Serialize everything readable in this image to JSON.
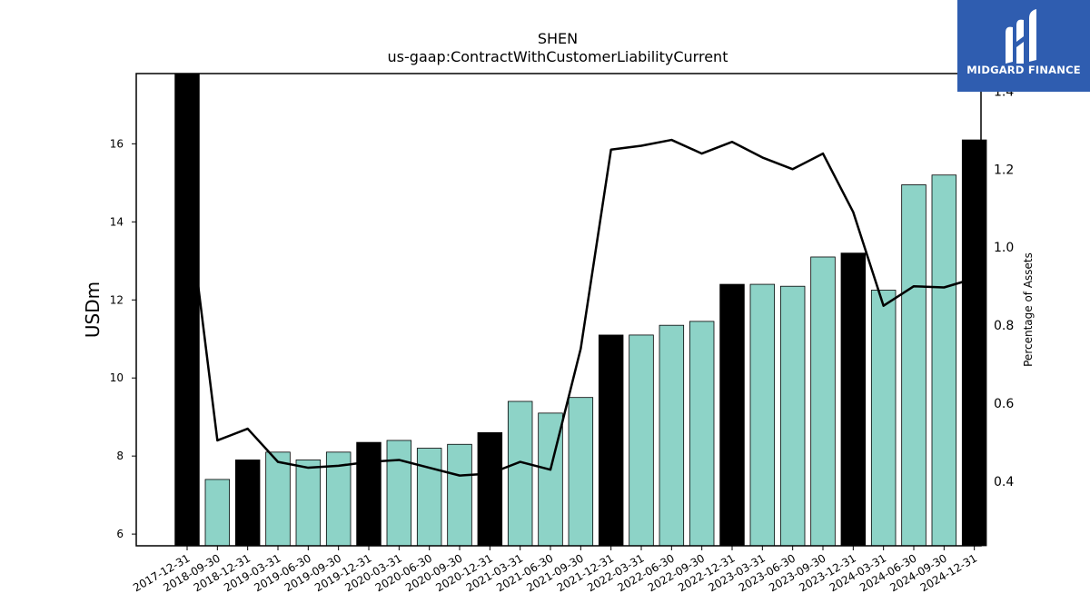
{
  "chart_data": {
    "type": "bar",
    "title": "SHEN",
    "subtitle": "us-gaap:ContractWithCustomerLiabilityCurrent",
    "ylabel": "USDm",
    "y2label": "Percentage of Assets",
    "ylim": [
      5.7,
      17.8
    ],
    "y2lim": [
      0.235,
      1.445
    ],
    "yticks": [
      6,
      8,
      10,
      12,
      14,
      16
    ],
    "y2ticks": [
      0.4,
      0.6,
      0.8,
      1.0,
      1.2,
      1.4
    ],
    "categories": [
      "2017-12-31",
      "2018-09-30",
      "2018-12-31",
      "2019-03-31",
      "2019-06-30",
      "2019-09-30",
      "2019-12-31",
      "2020-03-31",
      "2020-06-30",
      "2020-09-30",
      "2020-12-31",
      "2021-03-31",
      "2021-06-30",
      "2021-09-30",
      "2021-12-31",
      "2022-03-31",
      "2022-06-30",
      "2022-09-30",
      "2022-12-31",
      "2023-03-31",
      "2023-06-30",
      "2023-09-30",
      "2023-12-31",
      "2024-03-31",
      "2024-06-30",
      "2024-09-30",
      "2024-12-31"
    ],
    "series": [
      {
        "kind": "bar",
        "values": [
          17.8,
          7.4,
          7.9,
          8.1,
          7.9,
          8.1,
          8.35,
          8.4,
          8.2,
          8.3,
          8.6,
          9.4,
          9.1,
          9.5,
          11.1,
          11.1,
          11.35,
          11.45,
          12.4,
          12.4,
          12.35,
          13.1,
          13.2,
          12.25,
          14.95,
          15.2,
          16.1
        ],
        "year_end": [
          true,
          false,
          true,
          false,
          false,
          false,
          true,
          false,
          false,
          false,
          true,
          false,
          false,
          false,
          true,
          false,
          false,
          false,
          true,
          false,
          false,
          false,
          true,
          false,
          false,
          false,
          true
        ]
      },
      {
        "kind": "line",
        "axis": "right",
        "values": [
          1.13,
          0.505,
          0.535,
          0.45,
          0.435,
          0.44,
          0.45,
          0.455,
          0.435,
          0.415,
          0.42,
          0.45,
          0.43,
          0.74,
          1.25,
          1.26,
          1.275,
          1.24,
          1.27,
          1.23,
          1.2,
          1.24,
          1.09,
          0.85,
          0.9,
          0.897,
          0.92
        ]
      }
    ],
    "colors": {
      "year_end_bar": "#000000",
      "quarter_bar": "#8dd3c7",
      "line": "#000000"
    },
    "grid": false
  },
  "logo": {
    "text": "MIDGARD FINANCE",
    "background": "#2f5db0"
  }
}
